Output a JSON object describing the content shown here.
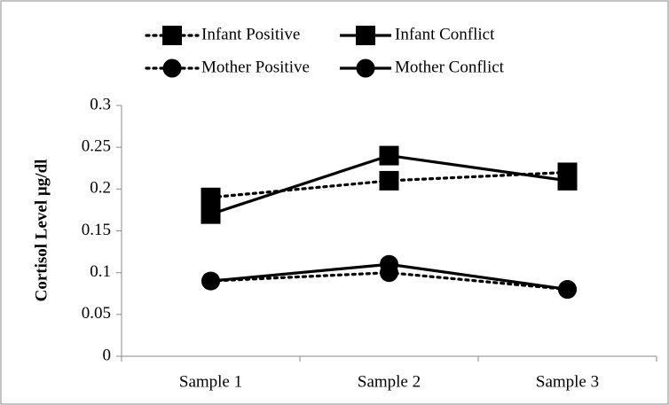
{
  "chart_data": {
    "type": "line",
    "ylabel": "Cortisol Level µg/dl",
    "categories": [
      "Sample 1",
      "Sample 2",
      "Sample 3"
    ],
    "series": [
      {
        "name": "Infant Positive",
        "color": "#000000",
        "style": "dotted",
        "marker": "square",
        "values": [
          0.19,
          0.21,
          0.22
        ]
      },
      {
        "name": "Infant Conflict",
        "color": "#000000",
        "style": "solid",
        "marker": "square",
        "values": [
          0.17,
          0.24,
          0.21
        ]
      },
      {
        "name": "Mother Positive",
        "color": "#000000",
        "style": "dotted",
        "marker": "circle",
        "values": [
          0.09,
          0.1,
          0.08
        ]
      },
      {
        "name": "Mother Conflict",
        "color": "#000000",
        "style": "solid",
        "marker": "circle",
        "values": [
          0.09,
          0.11,
          0.08
        ]
      }
    ],
    "ylim": [
      0,
      0.3
    ],
    "yticks": [
      0,
      0.05,
      0.1,
      0.15,
      0.2,
      0.25,
      0.3
    ],
    "grid": false
  }
}
